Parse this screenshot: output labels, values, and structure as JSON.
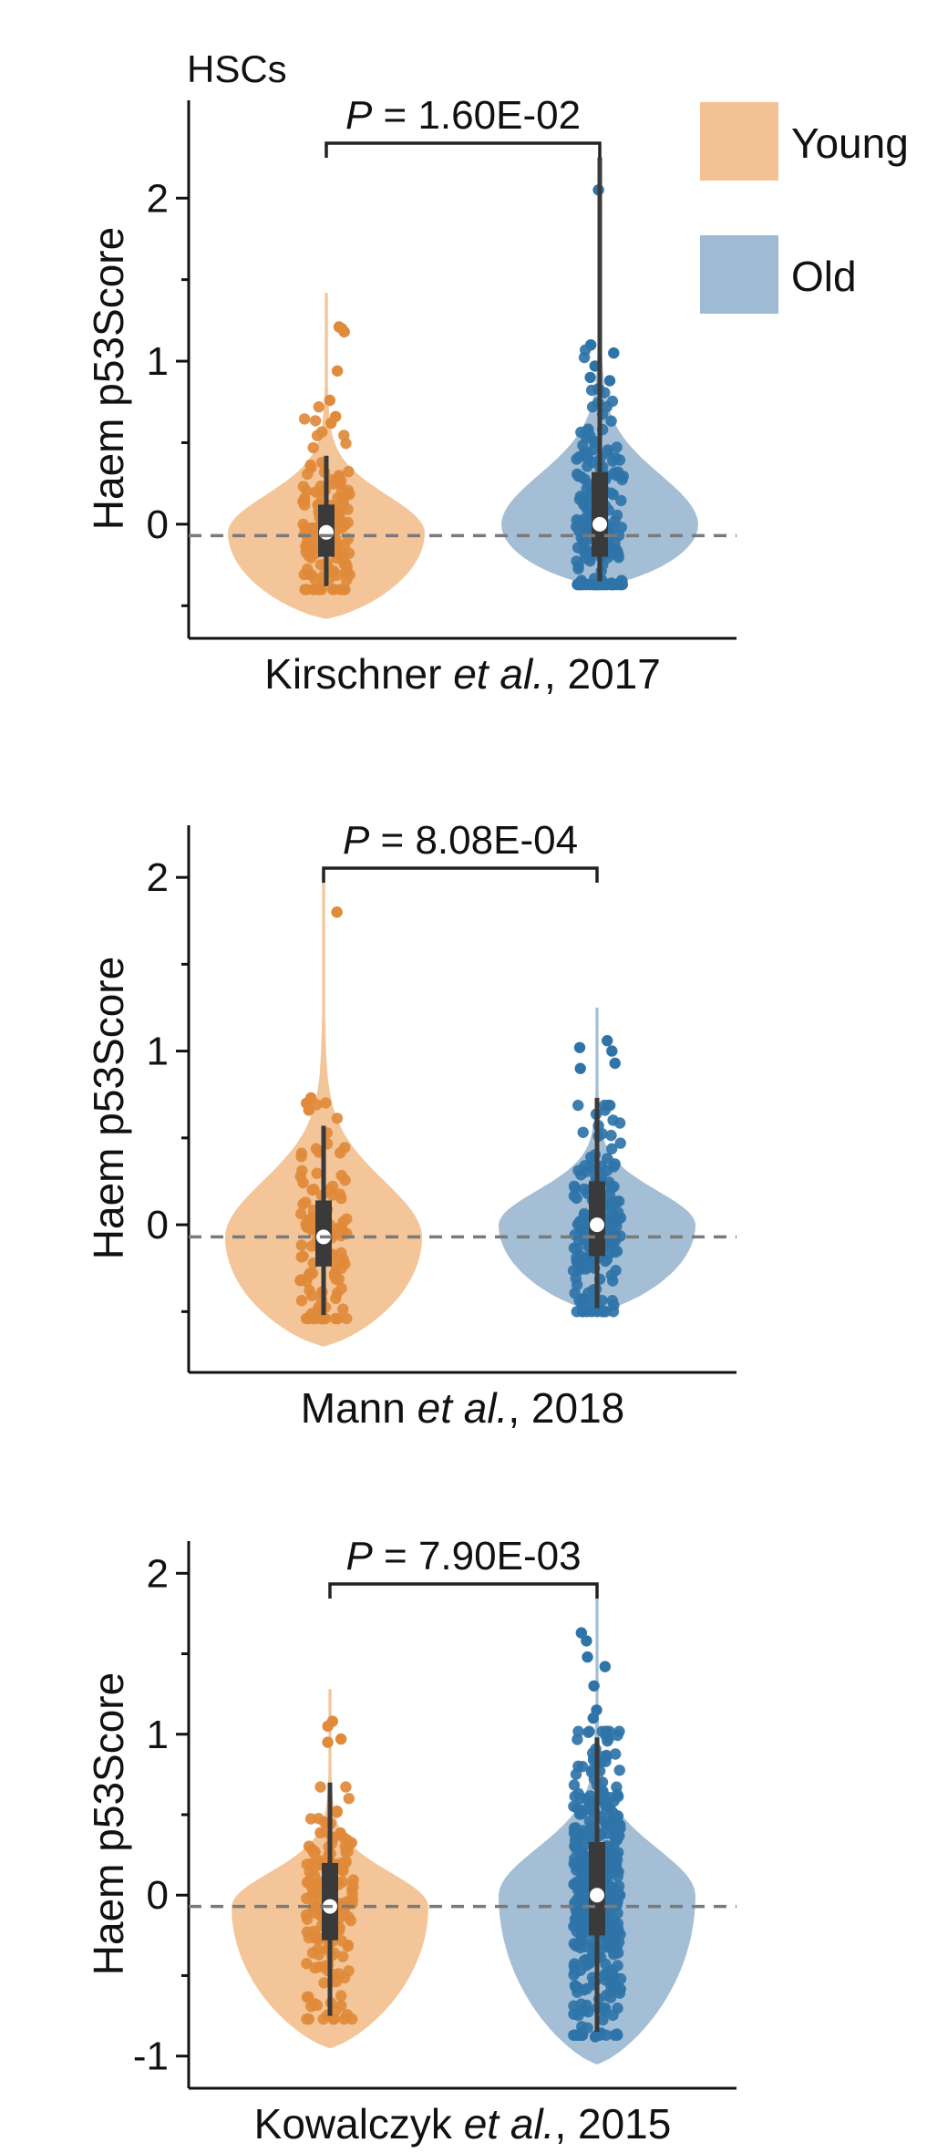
{
  "figure_label": "HSCs",
  "legend": [
    {
      "label": "Young",
      "color": "#f2c294"
    },
    {
      "label": "Old",
      "color": "#9fbad3"
    }
  ],
  "colors": {
    "young_fill": "#f2c294",
    "old_fill": "#9fbad3",
    "young_points": "#e08a3a",
    "old_points": "#2f74a8",
    "box": "#3a3a3a",
    "reference_line": "#7a7a7a"
  },
  "chart_data": [
    {
      "type": "violin",
      "xlabel": {
        "author": "Kirschner ",
        "etal": "et al.",
        "year": ", 2017"
      },
      "ylabel": "Haem p53Score",
      "ylim": [
        -0.7,
        2.6
      ],
      "yticks": [
        0,
        1,
        2
      ],
      "ytick_labels": [
        "0",
        "1",
        "2"
      ],
      "minor_yticks": [
        -0.5,
        0.5,
        1.5
      ],
      "pvalue": {
        "p": "P",
        "text": " = 1.60E-02"
      },
      "reference_y": -0.07,
      "groups": [
        {
          "name": "Young",
          "median": -0.05,
          "q1": -0.2,
          "q3": 0.12,
          "whisker_low": -0.38,
          "whisker_high": 0.42,
          "min": -0.58,
          "max": 1.42,
          "outliers": [
            1.2,
            1.21,
            1.18,
            0.94,
            0.76,
            0.66,
            0.62
          ],
          "n_points": 130,
          "seed": 11
        },
        {
          "name": "Old",
          "median": 0.0,
          "q1": -0.2,
          "q3": 0.32,
          "whisker_low": -0.35,
          "whisker_high": 2.25,
          "min": -0.38,
          "max": 1.95,
          "outliers": [
            2.05,
            1.1,
            1.05,
            0.97,
            0.9,
            0.88
          ],
          "n_points": 190,
          "seed": 23
        }
      ]
    },
    {
      "type": "violin",
      "xlabel": {
        "author": "Mann ",
        "etal": "et al.",
        "year": ", 2018"
      },
      "ylabel": "Haem p53Score",
      "ylim": [
        -0.85,
        2.3
      ],
      "yticks": [
        0,
        1,
        2
      ],
      "ytick_labels": [
        "0",
        "1",
        "2"
      ],
      "minor_yticks": [
        -0.5,
        0.5,
        1.5
      ],
      "pvalue": {
        "p": "P",
        "text": " = 8.08E-04"
      },
      "reference_y": -0.07,
      "groups": [
        {
          "name": "Young",
          "median": -0.07,
          "q1": -0.24,
          "q3": 0.14,
          "whisker_low": -0.52,
          "whisker_high": 0.57,
          "min": -0.7,
          "max": 2.0,
          "outliers": [
            1.8,
            0.73,
            0.7,
            0.66
          ],
          "n_points": 115,
          "seed": 37
        },
        {
          "name": "Old",
          "median": 0.0,
          "q1": -0.18,
          "q3": 0.25,
          "whisker_low": -0.48,
          "whisker_high": 0.73,
          "min": -0.5,
          "max": 1.25,
          "outliers": [
            1.06,
            1.02,
            1.0,
            0.93,
            0.9
          ],
          "n_points": 170,
          "seed": 41
        }
      ]
    },
    {
      "type": "violin",
      "xlabel": {
        "author": "Kowalczyk ",
        "etal": "et al.",
        "year": ", 2015"
      },
      "ylabel": "Haem p53Score",
      "ylim": [
        -1.2,
        2.2
      ],
      "yticks": [
        -1,
        0,
        1,
        2
      ],
      "ytick_labels": [
        "-1",
        "0",
        "1",
        "2"
      ],
      "minor_yticks": [
        -0.5,
        0.5,
        1.5
      ],
      "pvalue": {
        "p": "P",
        "text": " = 7.90E-03"
      },
      "reference_y": -0.07,
      "groups": [
        {
          "name": "Young",
          "median": -0.07,
          "q1": -0.28,
          "q3": 0.2,
          "whisker_low": -0.75,
          "whisker_high": 0.7,
          "min": -0.95,
          "max": 1.28,
          "outliers": [
            1.08,
            1.05,
            0.97,
            0.95
          ],
          "n_points": 170,
          "seed": 53
        },
        {
          "name": "Old",
          "median": 0.0,
          "q1": -0.25,
          "q3": 0.33,
          "whisker_low": -0.85,
          "whisker_high": 0.98,
          "min": -1.05,
          "max": 1.85,
          "outliers": [
            1.63,
            1.58,
            1.48,
            1.42,
            1.3,
            1.15,
            1.1,
            -0.88,
            -0.86
          ],
          "n_points": 420,
          "seed": 67
        }
      ]
    }
  ]
}
